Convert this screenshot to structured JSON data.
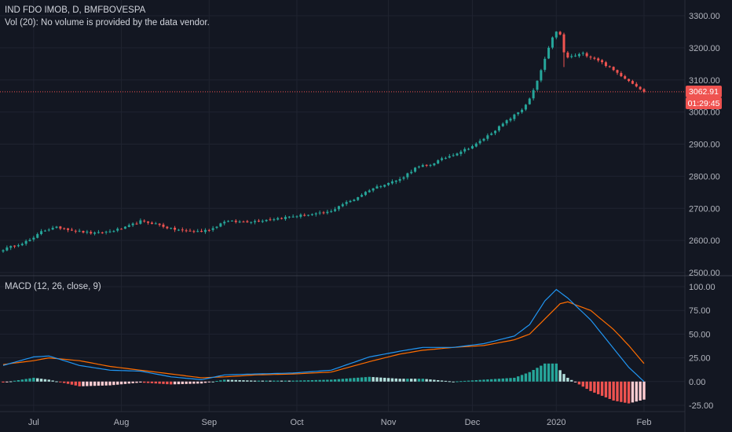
{
  "header": {
    "title": "IND FDO IMOB, D, BMFBOVESPA",
    "volume_note": "Vol (20): No volume is provided by the data vendor."
  },
  "price_badge": {
    "price": "3062.91",
    "countdown": "01:29:45",
    "color": "#ef5350"
  },
  "macd_panel": {
    "label": "MACD (12, 26, close, 9)"
  },
  "colors": {
    "background": "#131722",
    "up": "#26a69a",
    "down": "#ef5350",
    "macd_line": "#2196f3",
    "signal_line": "#ff6d00",
    "hist_pale": "#d1d4dc"
  },
  "chart_data": [
    {
      "type": "candlestick",
      "title": "IND FDO IMOB, D, BMFBOVESPA",
      "ylim": [
        2500,
        3300
      ],
      "y_ticks": [
        "2500.00",
        "2600.00",
        "2700.00",
        "2800.00",
        "2900.00",
        "3000.00",
        "3100.00",
        "3200.00",
        "3300.00"
      ],
      "x_ticks": [
        "Jul",
        "Aug",
        "Sep",
        "Oct",
        "Nov",
        "Dec",
        "2020",
        "Feb"
      ],
      "last_price": 3062.91,
      "close_anchors": [
        [
          0,
          2572
        ],
        [
          5,
          2592
        ],
        [
          8,
          2606
        ],
        [
          10,
          2630
        ],
        [
          14,
          2640
        ],
        [
          16,
          2638
        ],
        [
          20,
          2628
        ],
        [
          24,
          2622
        ],
        [
          28,
          2628
        ],
        [
          32,
          2640
        ],
        [
          36,
          2660
        ],
        [
          40,
          2652
        ],
        [
          44,
          2636
        ],
        [
          48,
          2630
        ],
        [
          52,
          2628
        ],
        [
          55,
          2638
        ],
        [
          58,
          2660
        ],
        [
          62,
          2658
        ],
        [
          66,
          2660
        ],
        [
          70,
          2666
        ],
        [
          74,
          2672
        ],
        [
          78,
          2678
        ],
        [
          82,
          2682
        ],
        [
          86,
          2690
        ],
        [
          88,
          2708
        ],
        [
          92,
          2728
        ],
        [
          96,
          2758
        ],
        [
          100,
          2776
        ],
        [
          104,
          2790
        ],
        [
          106,
          2808
        ],
        [
          108,
          2825
        ],
        [
          110,
          2832
        ],
        [
          112,
          2836
        ],
        [
          114,
          2848
        ],
        [
          118,
          2868
        ],
        [
          122,
          2888
        ],
        [
          124,
          2900
        ],
        [
          128,
          2935
        ],
        [
          132,
          2972
        ],
        [
          136,
          3008
        ],
        [
          138,
          3040
        ],
        [
          140,
          3095
        ],
        [
          142,
          3165
        ],
        [
          144,
          3230
        ],
        [
          145,
          3252
        ],
        [
          146,
          3240
        ],
        [
          147,
          3185
        ],
        [
          148,
          3170
        ],
        [
          152,
          3182
        ],
        [
          156,
          3162
        ],
        [
          160,
          3130
        ],
        [
          164,
          3098
        ],
        [
          166,
          3082
        ],
        [
          168,
          3063
        ]
      ]
    },
    {
      "type": "macd",
      "title": "MACD (12, 26, close, 9)",
      "ylim": [
        -25,
        100
      ],
      "y_ticks": [
        "-25.00",
        "0.00",
        "25.00",
        "50.00",
        "75.00",
        "100.00"
      ],
      "macd_anchors": [
        [
          0,
          17
        ],
        [
          8,
          26
        ],
        [
          12,
          27
        ],
        [
          20,
          17
        ],
        [
          28,
          12
        ],
        [
          36,
          11
        ],
        [
          44,
          5
        ],
        [
          52,
          2
        ],
        [
          58,
          7
        ],
        [
          66,
          8
        ],
        [
          76,
          9
        ],
        [
          86,
          12
        ],
        [
          96,
          26
        ],
        [
          104,
          32
        ],
        [
          110,
          36
        ],
        [
          118,
          36
        ],
        [
          126,
          40
        ],
        [
          134,
          48
        ],
        [
          138,
          60
        ],
        [
          142,
          85
        ],
        [
          145,
          97
        ],
        [
          148,
          88
        ],
        [
          154,
          65
        ],
        [
          160,
          35
        ],
        [
          164,
          15
        ],
        [
          168,
          0
        ]
      ],
      "signal_anchors": [
        [
          0,
          18
        ],
        [
          8,
          22
        ],
        [
          12,
          25
        ],
        [
          20,
          22
        ],
        [
          28,
          16
        ],
        [
          36,
          12
        ],
        [
          44,
          8
        ],
        [
          52,
          4
        ],
        [
          58,
          5
        ],
        [
          66,
          7
        ],
        [
          76,
          8
        ],
        [
          86,
          10
        ],
        [
          96,
          21
        ],
        [
          104,
          29
        ],
        [
          110,
          33
        ],
        [
          118,
          36
        ],
        [
          126,
          38
        ],
        [
          134,
          44
        ],
        [
          138,
          50
        ],
        [
          142,
          66
        ],
        [
          146,
          82
        ],
        [
          148,
          84
        ],
        [
          154,
          75
        ],
        [
          160,
          55
        ],
        [
          164,
          38
        ],
        [
          168,
          19
        ]
      ]
    }
  ]
}
